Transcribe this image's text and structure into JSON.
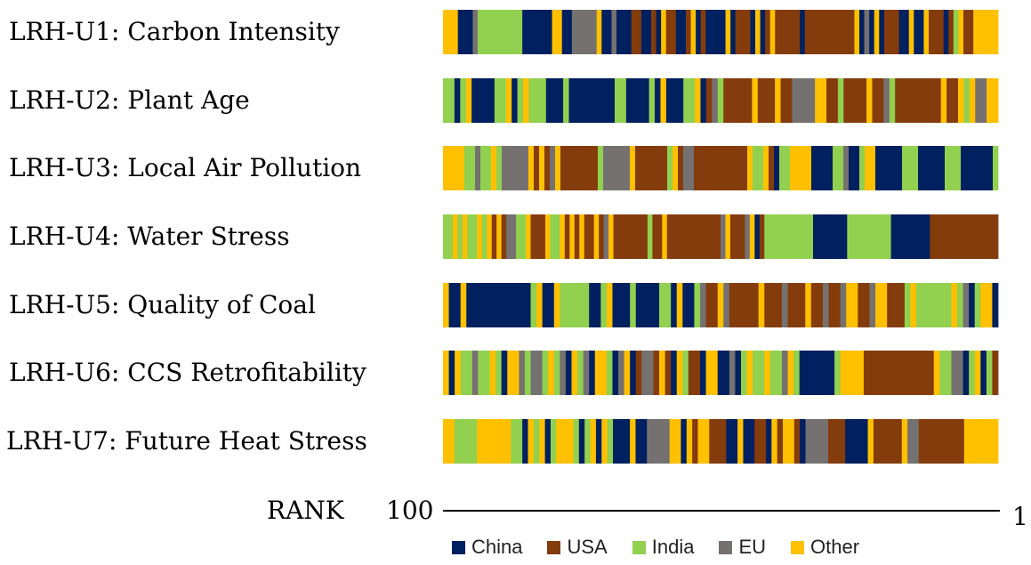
{
  "chart_data": {
    "type": "bar",
    "rows": [
      {
        "label": "LRH-U1: Carbon Intensity",
        "seq": "OOOCCCEIIIIIIIIICCCCCCOOCCEEEEEOCCECCCUUCCUCOUUCCUOCUCCCCOCUUUCOCUOUUUUUCUUUUUUUUUUOCECOCUUUCCOCCOUUUCUIOUUOOOOO"
      },
      {
        "label": "LRH-U2: Plant Age",
        "seq": "IICIOCCCCIIOCIOIIICCCICCCCCCCCIICCCCICOCCCIIOCUEIUUUUUOUUUOUUEEEEOOUUIUUUUOUUEIUUUUUUUUOUUOIOEEOO"
      },
      {
        "label": "LRH-U3: Local Air Pollution",
        "seq": "OOOOIIEIIOIEEEEEOUOUEOUUUUUUUIEEEEEOUUUUUUIOUEEUUUUUUUUUUOIIOUCIIOOOOCCCCIIECCIOOCCCCCIIICCCCCIIICCCCCCI"
      },
      {
        "label": "LRH-U4: Water Stress",
        "seq": "IIOIOIIOIOUOUEEIIOUUUOIIOUOUOUUOUEOUUUUUUUIUUOUUUUUUUUUUUEOUUUEOCUIIIIIIIIIICCCCCCCIIIIIIIIICCCCCCCCUUUUUUUUUUUUUU"
      },
      {
        "label": "LRH-U5: Quality of Coal",
        "seq": "OCCOCCCCCCCCCCCIOCCOIIIIICCIOCCCICCCCIICOCCIEUUOEUUUUUOUUUEUUUOUUEUUEOOUUEOOUUUIOIIIIIIOIECIOOC"
      },
      {
        "label": "LRH-U6: CCS Retrofitability",
        "seq": "OCOIIEIIOICOOEIEEIOIECOIECOOICEOCUEEUOUCOIUUCOOCCECIOIIOIIEOICCCCCCIOOOOUUUUUUUUUUUUOIIEECIOCIU"
      },
      {
        "label": "LRH-U7: Future Heat Stress",
        "seq": "OOIIIIOOOOOOIICOIOCIOOOICIOCOICCCOCCEEEEOOCOUOOUUUCCOCCUUCOUOOUCEEEEUUUCCCCOUUUUUOEEUUUUUUUUOOOOOO"
      }
    ],
    "xlabel": "RANK",
    "x_left_label": "100",
    "x_right_label": "1",
    "legend": [
      {
        "key": "C",
        "name": "China",
        "color": "#002060"
      },
      {
        "key": "U",
        "name": "USA",
        "color": "#843C0C"
      },
      {
        "key": "I",
        "name": "India",
        "color": "#92D050"
      },
      {
        "key": "E",
        "name": "EU",
        "color": "#767171"
      },
      {
        "key": "O",
        "name": "Other",
        "color": "#FFC000"
      }
    ],
    "legend_placement": "bottom"
  }
}
